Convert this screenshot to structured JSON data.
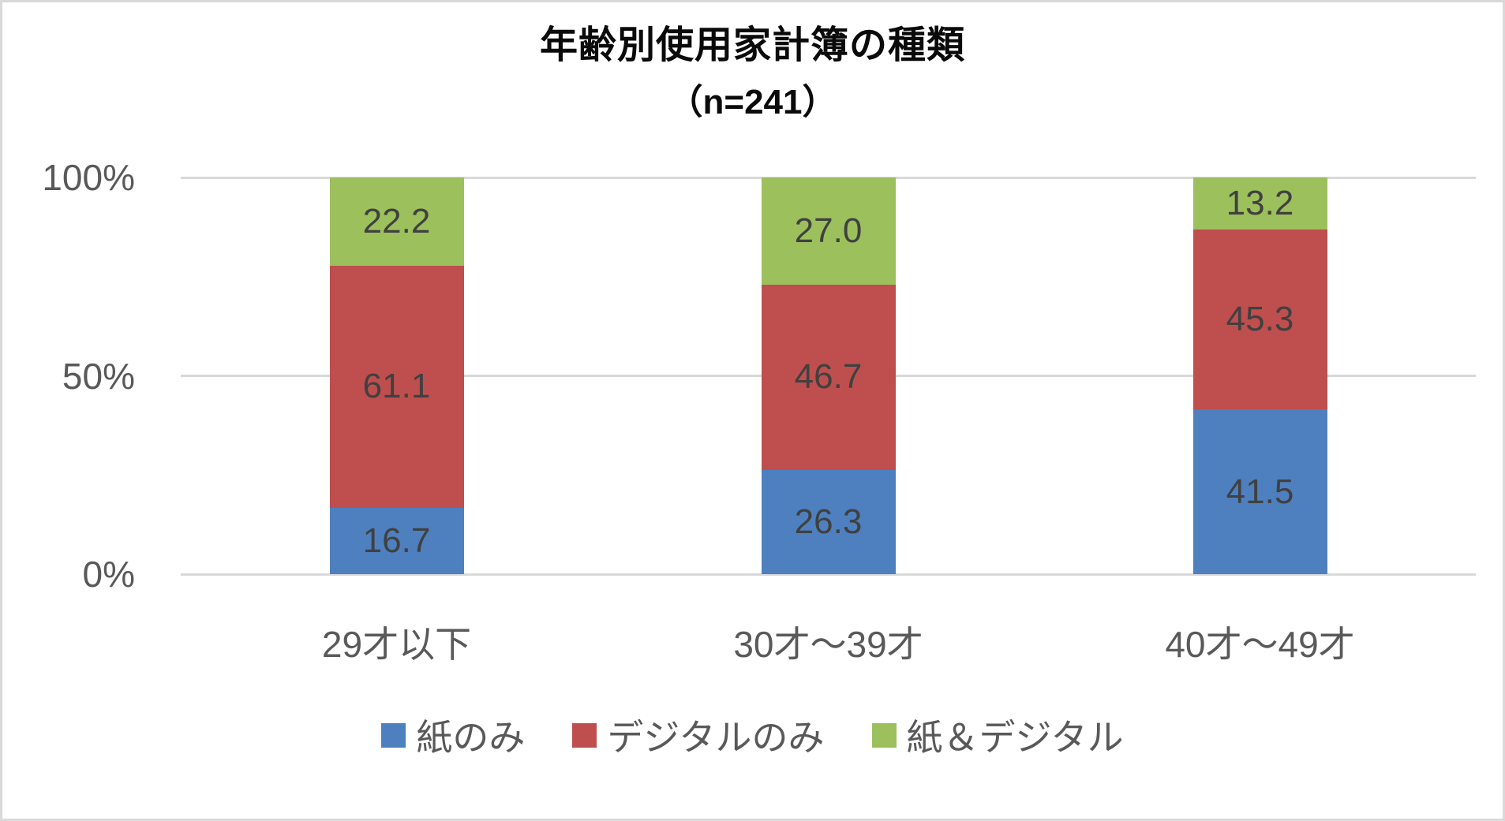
{
  "page": {
    "background": "#ffffff",
    "frame_border_color": "#d9d9d9"
  },
  "chart_data": {
    "type": "bar",
    "variant": "stacked-100-percent-column",
    "title": "年齢別使用家計簿の種類",
    "subtitle": "（n=241）",
    "categories": [
      "29才以下",
      "30才～39才",
      "40才～49才"
    ],
    "series": [
      {
        "name": "紙のみ",
        "color": "#4E80BF",
        "values": [
          16.7,
          26.3,
          41.5
        ],
        "labels": [
          "16.7",
          "26.3",
          "41.5"
        ]
      },
      {
        "name": "デジタルのみ",
        "color": "#BE4F4E",
        "values": [
          61.1,
          46.7,
          45.3
        ],
        "labels": [
          "61.1",
          "46.7",
          "45.3"
        ]
      },
      {
        "name": "紙＆デジタル",
        "color": "#9CC05C",
        "values": [
          22.2,
          27.0,
          13.2
        ],
        "labels": [
          "22.2",
          "27.0",
          "13.2"
        ]
      }
    ],
    "y_axis": {
      "ticks": [
        "0%",
        "50%",
        "100%"
      ],
      "tick_values": [
        0,
        50,
        100
      ],
      "ylim": [
        0,
        100
      ]
    },
    "xlabel": "",
    "ylabel": "",
    "grid": true,
    "gridline_color": "#d9d9d9",
    "axis_text_color": "#595959",
    "data_label_color": "#404040",
    "legend_position": "bottom",
    "legend_marker": "square"
  }
}
